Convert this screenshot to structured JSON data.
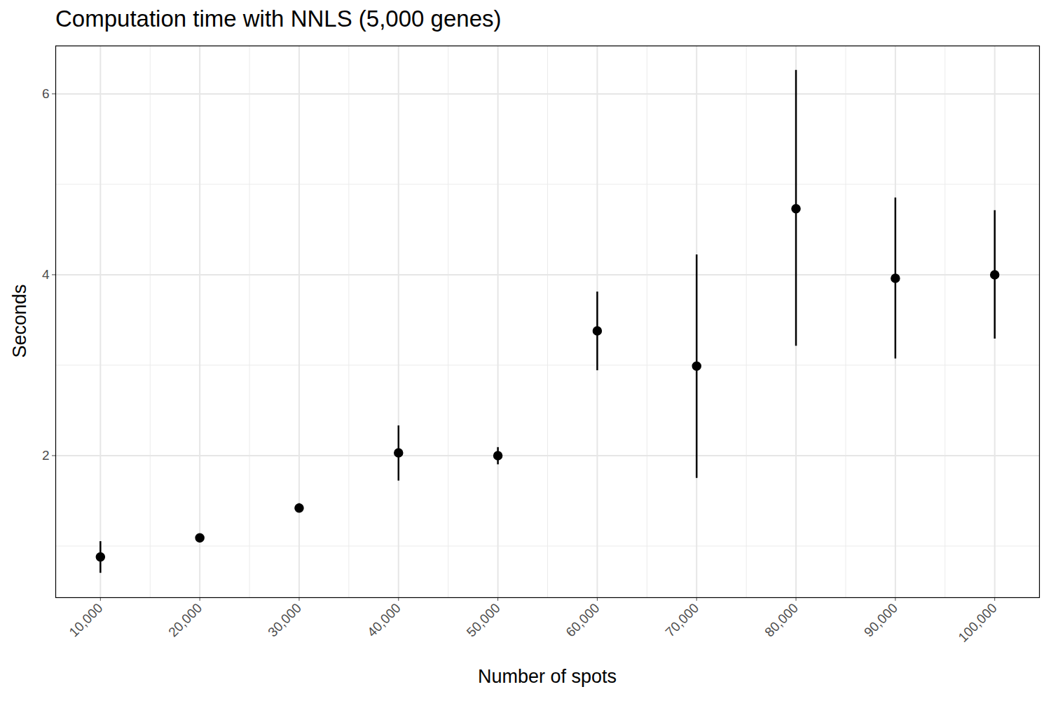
{
  "chart_data": {
    "type": "scatter",
    "title": "Computation time with NNLS (5,000 genes)",
    "x_label": "Number of spots",
    "y_label": "Seconds",
    "x": [
      10000,
      20000,
      30000,
      40000,
      50000,
      60000,
      70000,
      80000,
      90000,
      100000
    ],
    "values": [
      0.88,
      1.09,
      1.42,
      2.03,
      2.0,
      3.38,
      2.99,
      4.73,
      3.96,
      4.0
    ],
    "error_lower": [
      0.7,
      1.04,
      1.37,
      1.72,
      1.9,
      2.94,
      1.75,
      3.21,
      3.07,
      3.29
    ],
    "error_upper": [
      1.05,
      1.13,
      1.47,
      2.33,
      2.09,
      3.81,
      4.22,
      6.26,
      4.85,
      4.71
    ],
    "color": "#000000",
    "marker": "circle",
    "xlim": [
      5500,
      104500
    ],
    "ylim": [
      0.43,
      6.53
    ],
    "xticks": [
      {
        "value": 10000,
        "label": "10,000"
      },
      {
        "value": 20000,
        "label": "20,000"
      },
      {
        "value": 30000,
        "label": "30,000"
      },
      {
        "value": 40000,
        "label": "40,000"
      },
      {
        "value": 50000,
        "label": "50,000"
      },
      {
        "value": 60000,
        "label": "60,000"
      },
      {
        "value": 70000,
        "label": "70,000"
      },
      {
        "value": 80000,
        "label": "80,000"
      },
      {
        "value": 90000,
        "label": "90,000"
      },
      {
        "value": 100000,
        "label": "100,000"
      }
    ],
    "yticks": [
      2,
      4,
      6
    ],
    "grid": true
  }
}
